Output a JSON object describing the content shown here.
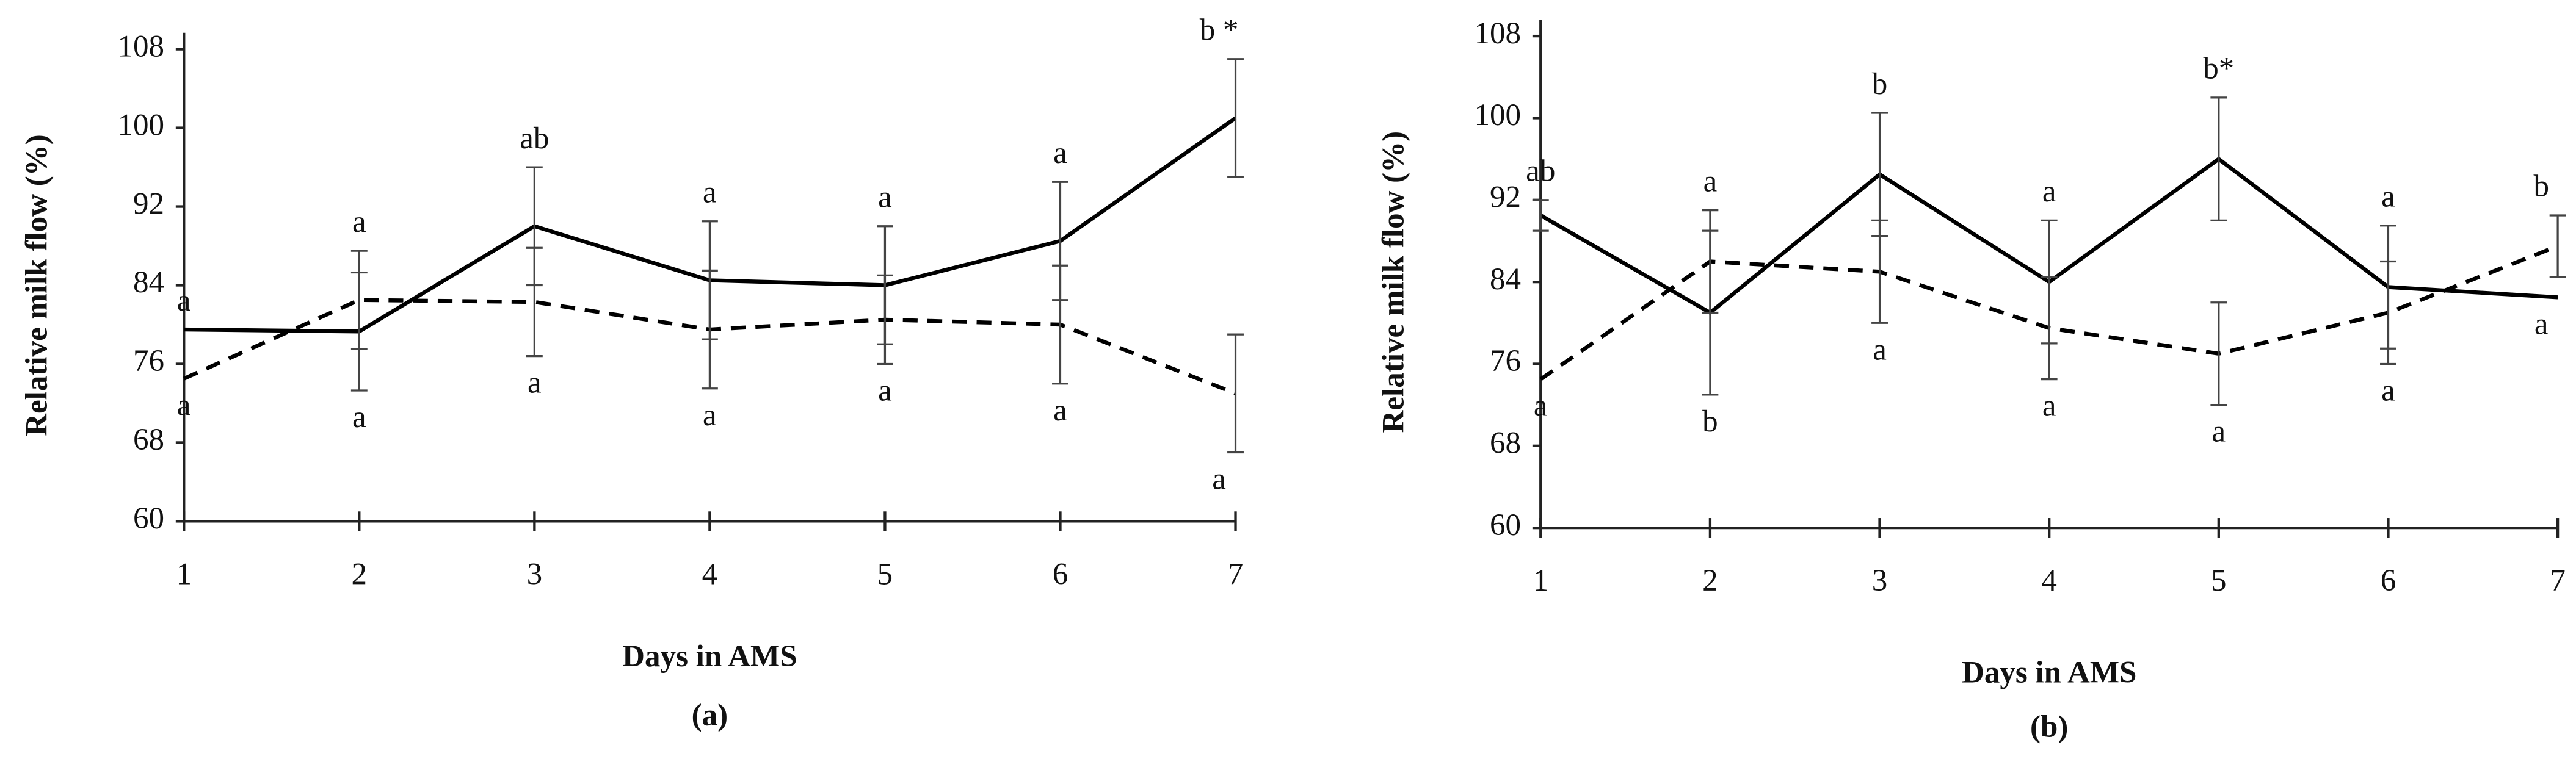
{
  "chart_data": [
    {
      "type": "line",
      "x_label": "Days in AMS",
      "y_label": "Relative milk flow (%)",
      "caption": "(a)",
      "x": [
        1,
        2,
        3,
        4,
        5,
        6,
        7
      ],
      "xlim": [
        1,
        7
      ],
      "xticks": [
        1,
        2,
        3,
        4,
        5,
        6,
        7
      ],
      "ylim": [
        60,
        108
      ],
      "yticks": [
        60,
        68,
        76,
        84,
        92,
        100,
        108
      ],
      "series": [
        {
          "style": "solid",
          "color": "#000000",
          "values": [
            79.5,
            79.3,
            90,
            84.5,
            84,
            88.5,
            101
          ],
          "errors": [
            null,
            6,
            6,
            6,
            6,
            6,
            6
          ],
          "labels": [
            "a",
            "a",
            "ab",
            "a",
            "a",
            "a",
            "b *"
          ]
        },
        {
          "style": "dashed",
          "color": "#000000",
          "values": [
            74.5,
            82.5,
            82.3,
            79.5,
            80.5,
            80,
            73
          ],
          "errors": [
            null,
            5,
            5.5,
            6,
            4.5,
            6,
            6
          ],
          "labels": [
            "a",
            "a",
            "a",
            "a",
            "a",
            "a",
            "a"
          ]
        }
      ]
    },
    {
      "type": "line",
      "x_label": "Days in AMS",
      "y_label": "Relative milk flow (%)",
      "caption": "(b)",
      "x": [
        1,
        2,
        3,
        4,
        5,
        6,
        7
      ],
      "xlim": [
        1,
        7
      ],
      "xticks": [
        1,
        2,
        3,
        4,
        5,
        6,
        7
      ],
      "ylim": [
        60,
        108
      ],
      "yticks": [
        60,
        68,
        76,
        84,
        92,
        100,
        108
      ],
      "series": [
        {
          "style": "solid",
          "color": "#000000",
          "values": [
            90.5,
            81,
            94.5,
            84,
            96,
            83.5,
            82.5
          ],
          "errors": [
            1.5,
            8,
            6,
            6,
            6,
            6,
            null
          ],
          "labels": [
            "ab",
            "b",
            "b",
            "a",
            "b*",
            "a",
            "a"
          ]
        },
        {
          "style": "dashed",
          "color": "#000000",
          "values": [
            74.5,
            86,
            85,
            79.5,
            77,
            81,
            87.5
          ],
          "errors": [
            null,
            5,
            5,
            5,
            5,
            5,
            3
          ],
          "labels": [
            "a",
            "a",
            "a",
            "a",
            "a",
            "a",
            "b"
          ]
        }
      ]
    }
  ]
}
